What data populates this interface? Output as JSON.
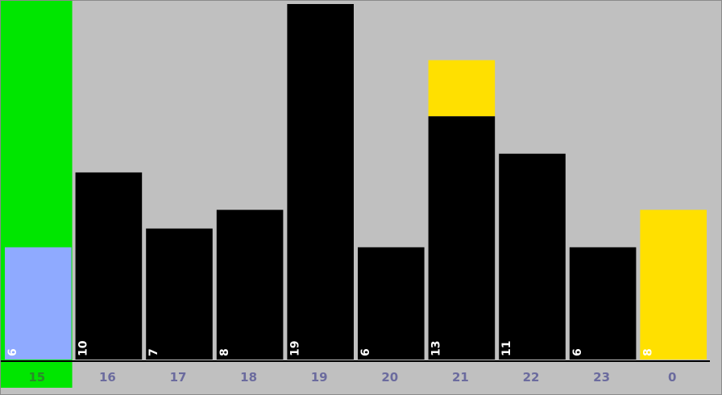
{
  "chart_data": {
    "type": "bar",
    "categories": [
      "15",
      "16",
      "17",
      "18",
      "19",
      "20",
      "21",
      "22",
      "23",
      "0"
    ],
    "values": [
      6,
      10,
      7,
      8,
      19,
      6,
      13,
      11,
      6,
      8
    ],
    "overlay": {
      "category": "21",
      "extent_to": 16
    },
    "current_category": "15",
    "highlight_category": "0",
    "ylim": [
      0,
      19
    ],
    "grid": false,
    "colors": {
      "background": "#c0c0c0",
      "bar": "#000000",
      "current_column": "#00e600",
      "current_bar": "#8faaff",
      "highlight": "#ffe000",
      "value_text": "#ffffff",
      "axis_text": "#6b6b9e",
      "axis_text_active": "#2a8a2a",
      "axis_line": "#000000"
    }
  }
}
